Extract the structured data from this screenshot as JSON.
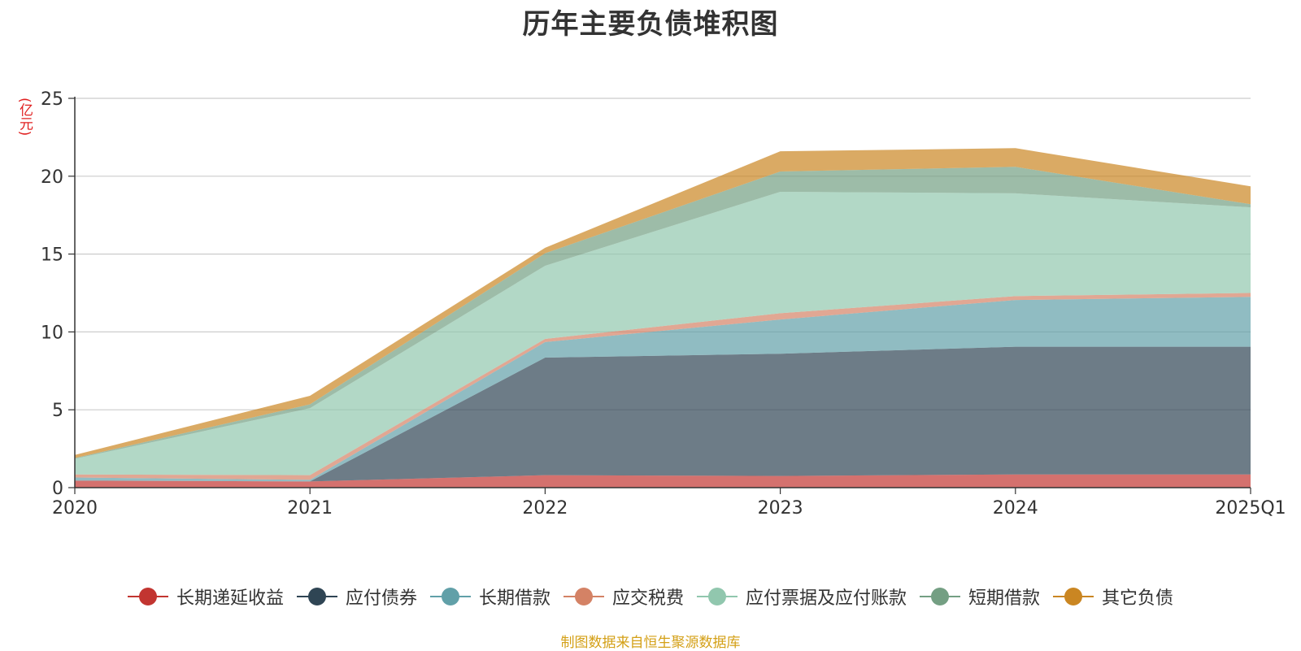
{
  "chart_data": {
    "type": "area",
    "stacked": true,
    "title": "历年主要负债堆积图",
    "ylabel": "(亿元)",
    "xlabel": "",
    "ylim": [
      0,
      25
    ],
    "yticks": [
      0,
      5,
      10,
      15,
      20,
      25
    ],
    "categories": [
      "2020",
      "2021",
      "2022",
      "2023",
      "2024",
      "2025Q1"
    ],
    "series": [
      {
        "name": "长期递延收益",
        "color": "#c23531",
        "values": [
          0.45,
          0.4,
          0.8,
          0.75,
          0.85,
          0.85
        ]
      },
      {
        "name": "应付债券",
        "color": "#2f4554",
        "values": [
          0,
          0,
          7.55,
          7.85,
          8.2,
          8.2
        ]
      },
      {
        "name": "长期借款",
        "color": "#61a0a8",
        "values": [
          0.2,
          0.1,
          1.0,
          2.2,
          3.0,
          3.2
        ]
      },
      {
        "name": "应交税费",
        "color": "#d48265",
        "values": [
          0.2,
          0.3,
          0.2,
          0.4,
          0.25,
          0.25
        ]
      },
      {
        "name": "应付票据及应付账款",
        "color": "#91c7ae",
        "values": [
          1.0,
          4.3,
          4.7,
          7.8,
          6.6,
          5.5
        ]
      },
      {
        "name": "短期借款",
        "color": "#749f83",
        "values": [
          0.05,
          0.25,
          0.8,
          1.3,
          1.7,
          0.2
        ]
      },
      {
        "name": "其它负债",
        "color": "#ca8622",
        "values": [
          0.2,
          0.55,
          0.35,
          1.3,
          1.2,
          1.15
        ]
      }
    ]
  },
  "source_note": "制图数据来自恒生聚源数据库"
}
